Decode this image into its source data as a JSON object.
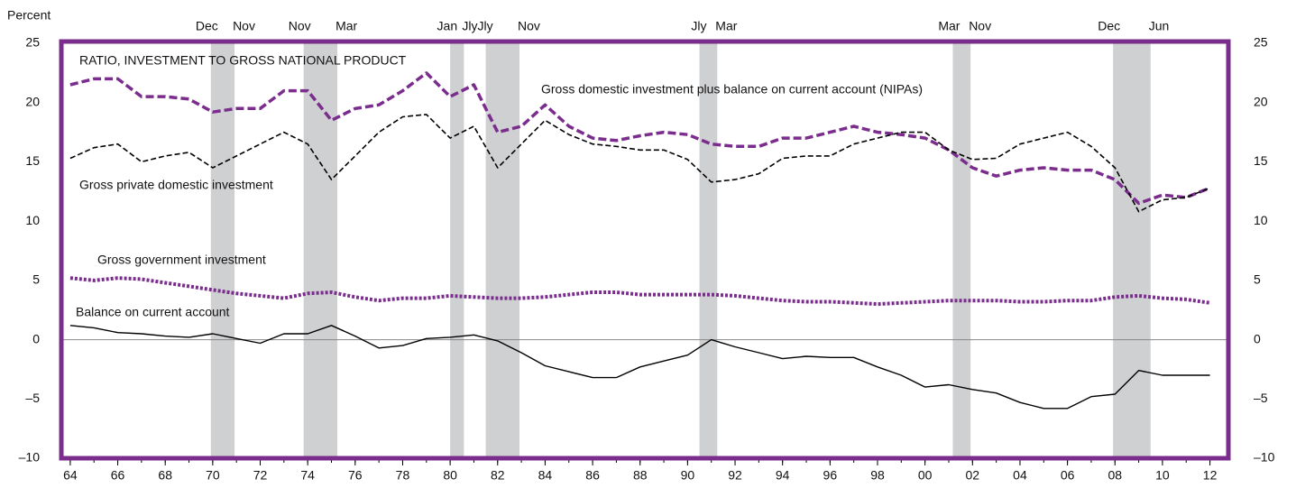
{
  "chart_data": {
    "type": "line",
    "title": "RATIO, INVESTMENT TO GROSS NATIONAL PRODUCT",
    "y_label": "Percent",
    "x": [
      1964,
      1965,
      1966,
      1967,
      1968,
      1969,
      1970,
      1971,
      1972,
      1973,
      1974,
      1975,
      1976,
      1977,
      1978,
      1979,
      1980,
      1981,
      1982,
      1983,
      1984,
      1985,
      1986,
      1987,
      1988,
      1989,
      1990,
      1991,
      1992,
      1993,
      1994,
      1995,
      1996,
      1997,
      1998,
      1999,
      2000,
      2001,
      2002,
      2003,
      2004,
      2005,
      2006,
      2007,
      2008,
      2009,
      2010,
      2011,
      2012
    ],
    "series": [
      {
        "name": "Gross domestic investment plus balance on current account (NIPAs)",
        "color": "#7b2d8e",
        "style": "dashed",
        "values": [
          21.5,
          22,
          22,
          20.5,
          20.5,
          20.3,
          19.2,
          19.5,
          19.5,
          21,
          21,
          18.5,
          19.5,
          19.8,
          21,
          22.5,
          20.5,
          21.5,
          17.5,
          18,
          19.8,
          18,
          17,
          16.8,
          17.2,
          17.5,
          17.3,
          16.5,
          16.3,
          16.3,
          17,
          17,
          17.5,
          18,
          17.5,
          17.3,
          17,
          16,
          14.5,
          13.8,
          14.3,
          14.5,
          14.3,
          14.3,
          13.5,
          11.5,
          12.2,
          12,
          12.8
        ]
      },
      {
        "name": "Gross private domestic investment",
        "color": "#000000",
        "style": "thin-dashed",
        "values": [
          15.3,
          16.2,
          16.5,
          15,
          15.5,
          15.8,
          14.5,
          15.5,
          16.5,
          17.5,
          16.5,
          13.5,
          15.5,
          17.5,
          18.8,
          19,
          17,
          18,
          14.5,
          16.5,
          18.5,
          17.3,
          16.5,
          16.3,
          16,
          16,
          15.2,
          13.3,
          13.5,
          14,
          15.3,
          15.5,
          15.5,
          16.5,
          17,
          17.5,
          17.5,
          16,
          15.2,
          15.3,
          16.5,
          17,
          17.5,
          16.3,
          14.5,
          10.8,
          11.8,
          12,
          12.8
        ]
      },
      {
        "name": "Gross government investment",
        "color": "#7b2d8e",
        "style": "dotted",
        "values": [
          5.2,
          5,
          5.2,
          5.1,
          4.8,
          4.5,
          4.2,
          3.9,
          3.7,
          3.5,
          3.9,
          4,
          3.6,
          3.3,
          3.5,
          3.5,
          3.7,
          3.6,
          3.5,
          3.5,
          3.6,
          3.8,
          4,
          4,
          3.8,
          3.8,
          3.8,
          3.8,
          3.7,
          3.5,
          3.3,
          3.2,
          3.2,
          3.1,
          3,
          3.1,
          3.2,
          3.3,
          3.3,
          3.3,
          3.2,
          3.2,
          3.3,
          3.3,
          3.6,
          3.7,
          3.5,
          3.4,
          3.1
        ]
      },
      {
        "name": "Balance on current account",
        "color": "#000000",
        "style": "solid",
        "values": [
          1.2,
          1,
          0.6,
          0.5,
          0.3,
          0.2,
          0.5,
          0.1,
          -0.3,
          0.5,
          0.5,
          1.2,
          0.3,
          -0.7,
          -0.5,
          0.1,
          0.2,
          0.4,
          -0.1,
          -1.1,
          -2.2,
          -2.7,
          -3.2,
          -3.2,
          -2.3,
          -1.8,
          -1.3,
          0,
          -0.6,
          -1.1,
          -1.6,
          -1.4,
          -1.5,
          -1.5,
          -2.3,
          -3,
          -4,
          -3.8,
          -4.2,
          -4.5,
          -5.3,
          -5.8,
          -5.8,
          -4.8,
          -4.6,
          -2.6,
          -3,
          -3,
          -3
        ]
      }
    ],
    "recessions": [
      {
        "start": 1969.92,
        "end": 1970.92,
        "start_label": "Dec",
        "end_label": "Nov"
      },
      {
        "start": 1973.83,
        "end": 1975.25,
        "start_label": "Nov",
        "end_label": "Mar"
      },
      {
        "start": 1980.0,
        "end": 1980.58,
        "start_label": "Jan",
        "end_label": "Jly"
      },
      {
        "start": 1981.5,
        "end": 1982.92,
        "start_label": "Jly",
        "end_label": "Nov"
      },
      {
        "start": 1990.5,
        "end": 1991.25,
        "start_label": "Jly",
        "end_label": "Mar"
      },
      {
        "start": 2001.17,
        "end": 2001.92,
        "start_label": "Mar",
        "end_label": "Nov"
      },
      {
        "start": 2007.92,
        "end": 2009.5,
        "start_label": "Dec",
        "end_label": "Jun"
      }
    ],
    "xlim": [
      1963.7,
      2012.7
    ],
    "xticks": [
      {
        "value": 1964,
        "label": "64"
      },
      {
        "value": 1966,
        "label": "66"
      },
      {
        "value": 1968,
        "label": "68"
      },
      {
        "value": 1970,
        "label": "70"
      },
      {
        "value": 1972,
        "label": "72"
      },
      {
        "value": 1974,
        "label": "74"
      },
      {
        "value": 1976,
        "label": "76"
      },
      {
        "value": 1978,
        "label": "78"
      },
      {
        "value": 1980,
        "label": "80"
      },
      {
        "value": 1982,
        "label": "82"
      },
      {
        "value": 1984,
        "label": "84"
      },
      {
        "value": 1986,
        "label": "86"
      },
      {
        "value": 1988,
        "label": "88"
      },
      {
        "value": 1990,
        "label": "90"
      },
      {
        "value": 1992,
        "label": "92"
      },
      {
        "value": 1994,
        "label": "94"
      },
      {
        "value": 1996,
        "label": "96"
      },
      {
        "value": 1998,
        "label": "98"
      },
      {
        "value": 2000,
        "label": "00"
      },
      {
        "value": 2002,
        "label": "02"
      },
      {
        "value": 2004,
        "label": "04"
      },
      {
        "value": 2006,
        "label": "06"
      },
      {
        "value": 2008,
        "label": "08"
      },
      {
        "value": 2010,
        "label": "10"
      },
      {
        "value": 2012,
        "label": "12"
      }
    ],
    "ylim": [
      -10,
      25
    ],
    "yticks": [
      {
        "value": -10,
        "label": "–10"
      },
      {
        "value": -5,
        "label": "–5"
      },
      0,
      5,
      10,
      15,
      20,
      25
    ]
  }
}
